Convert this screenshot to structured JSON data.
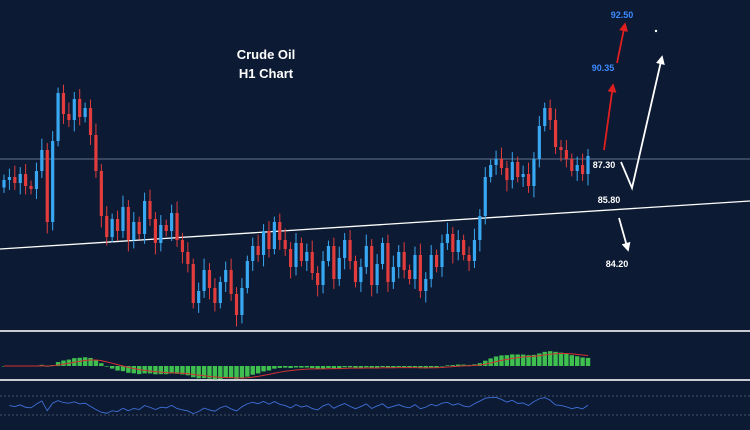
{
  "chart_data": {
    "type": "candlestick",
    "title": "Crude Oil",
    "subtitle": "H1 Chart",
    "price_range": [
      82.6,
      93.6
    ],
    "levels": [
      {
        "label": "92.50",
        "value": 92.5,
        "color": "#3d8bff"
      },
      {
        "label": "90.35",
        "value": 90.35,
        "color": "#3d8bff"
      },
      {
        "label": "87.30",
        "value": 87.3,
        "color": "#ffffff"
      },
      {
        "label": "85.80",
        "value": 85.8,
        "color": "#ffffff"
      },
      {
        "label": "84.20",
        "value": 84.2,
        "color": "#ffffff"
      }
    ],
    "horizontal_line": {
      "value": 88.3,
      "color": "#7f93ad"
    },
    "trendline": {
      "start_price": 85.3,
      "end_price": 86.9,
      "color": "#ffffff"
    },
    "close_series": [
      87.6,
      87.7,
      87.5,
      87.8,
      87.4,
      87.3,
      87.9,
      88.6,
      86.2,
      88.9,
      90.5,
      89.8,
      89.6,
      90.3,
      89.7,
      90.0,
      89.1,
      87.9,
      86.4,
      85.7,
      86.3,
      85.9,
      86.7,
      85.6,
      86.2,
      85.8,
      86.9,
      86.3,
      85.5,
      86.1,
      85.9,
      86.5,
      85.6,
      85.2,
      84.8,
      83.5,
      83.9,
      84.6,
      84.0,
      83.5,
      84.2,
      84.6,
      83.8,
      83.1,
      84.0,
      84.9,
      85.4,
      85.1,
      85.9,
      85.3,
      86.2,
      85.6,
      85.3,
      84.7,
      85.5,
      84.9,
      85.2,
      84.5,
      84.1,
      84.9,
      85.4,
      84.3,
      85.0,
      85.6,
      84.9,
      84.2,
      84.7,
      85.4,
      84.1,
      84.8,
      85.5,
      84.2,
      84.7,
      85.2,
      84.6,
      84.3,
      85.1,
      83.9,
      84.3,
      85.1,
      84.7,
      85.5,
      85.8,
      85.2,
      85.6,
      85.1,
      84.9,
      85.6,
      86.4,
      87.7,
      88.1,
      88.3,
      88.0,
      87.6,
      88.2,
      87.7,
      87.8,
      87.4,
      88.3,
      89.4,
      90.0,
      89.6,
      88.7,
      88.6,
      88.3,
      87.9,
      88.1,
      87.8,
      88.4
    ],
    "indicators": [
      {
        "name": "MACD histogram"
      },
      {
        "name": "RSI"
      }
    ],
    "grid": false
  },
  "colors": {
    "background": "#0c1a33",
    "bull": "#39a8f2",
    "bear": "#e23c3c",
    "histogram": "#3fbf4f",
    "signal": "#d23232",
    "rsi": "#3f6fd9",
    "separator": "#c8ccd2"
  }
}
